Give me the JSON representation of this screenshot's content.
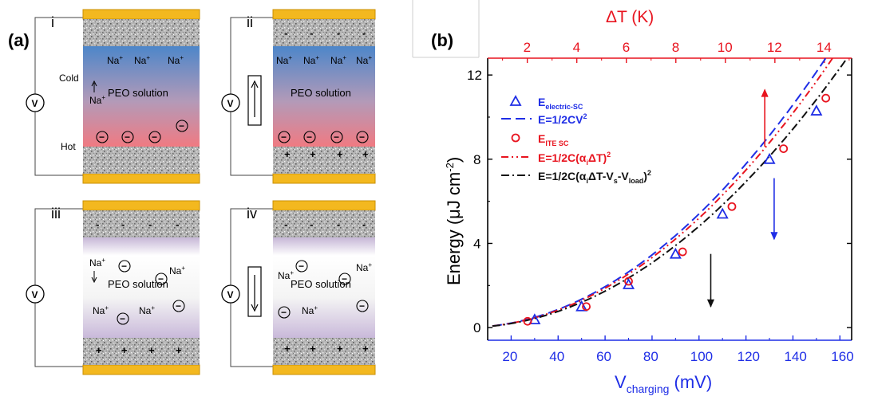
{
  "panel_a": {
    "label": "(a)",
    "subpanels": [
      {
        "id": "i",
        "top_text": "Cold",
        "bottom_text": "Hot",
        "solution": "PEO solution",
        "meter": "V",
        "electrolyte": "hot_cold"
      },
      {
        "id": "ii",
        "solution": "PEO solution",
        "meter": "V",
        "electrolyte": "hot_cold"
      },
      {
        "id": "iii",
        "solution": "PEO solution",
        "meter": "V",
        "electrolyte": "neutral"
      },
      {
        "id": "iv",
        "solution": "PEO solution",
        "meter": "V",
        "electrolyte": "neutral"
      }
    ],
    "ion_na": "Na",
    "ion_plus": "+",
    "anion": "−",
    "plus": "+",
    "minus": "-"
  },
  "panel_b": {
    "label": "(b)"
  },
  "chart_data": {
    "type": "line",
    "x_axis": {
      "label_main": "V",
      "label_sub": "charging",
      "label_unit": " (mV)",
      "range": [
        10,
        165
      ],
      "ticks": [
        "20",
        "40",
        "60",
        "80",
        "100",
        "120",
        "140",
        "160"
      ]
    },
    "y_axis": {
      "label_main": "Energy (μJ cm",
      "label_sup": "-2",
      "label_close": ")",
      "range": [
        -0.6,
        12.8
      ],
      "ticks": [
        "0",
        "4",
        "8",
        "12"
      ]
    },
    "top_axis": {
      "label": "ΔT (K)",
      "range": [
        0.4,
        15.1
      ],
      "ticks": [
        "2",
        "4",
        "6",
        "8",
        "10",
        "12",
        "14"
      ],
      "color": "#e8141f"
    },
    "series": [
      {
        "name": "E=1/2CV²",
        "color": "#1f2ee6",
        "style": "dash",
        "axis": "bottom",
        "fn": "cv2"
      },
      {
        "name": "E=1/2C(αᵢΔT)²",
        "color": "#e8141f",
        "style": "dashdotdot",
        "axis": "bottom",
        "fn": "itesc"
      },
      {
        "name": "E=1/2C(αᵢΔT-Vₛ-V_load)²",
        "color": "#111111",
        "style": "dashdot",
        "axis": "bottom",
        "fn": "load"
      }
    ],
    "scatter": [
      {
        "name": "E_electric-SC",
        "marker": "triangle",
        "color": "#1f2ee6",
        "x": [
          30,
          50,
          70,
          90,
          110,
          130,
          150
        ],
        "y": [
          0.38,
          1.0,
          2.05,
          3.5,
          5.4,
          8.0,
          10.3
        ]
      },
      {
        "name": "E_ITE SC",
        "marker": "circle",
        "color": "#e8141f",
        "x": [
          27,
          52,
          70,
          93,
          114,
          136,
          154
        ],
        "y": [
          0.3,
          1.0,
          2.2,
          3.6,
          5.75,
          8.5,
          10.9
        ]
      }
    ],
    "legend": [
      {
        "marker": "triangle",
        "color": "#1f2ee6",
        "main": "E",
        "sub": "electric-SC",
        "tail": ""
      },
      {
        "marker": "dash",
        "color": "#1f2ee6",
        "main": "E=1/2CV",
        "sup": "2",
        "tail": ""
      },
      {
        "marker": "circle",
        "color": "#e8141f",
        "main": "E",
        "sub": "ITE SC",
        "tail": ""
      },
      {
        "marker": "dashdotdot",
        "color": "#e8141f",
        "main": "E=1/2C(α",
        "sub": "i",
        "main2": "ΔT)",
        "sup": "2"
      },
      {
        "marker": "dashdot",
        "color": "#111111",
        "main": "E=1/2C(α",
        "sub": "i",
        "main2": "ΔT-V",
        "sub2": "s",
        "main3": "-V",
        "sub3": "load",
        "main4": ")",
        "sup": "2"
      }
    ],
    "arrows": [
      {
        "color": "#e8141f",
        "x": 128,
        "y_from": 8.6,
        "y_to": 11.3
      },
      {
        "color": "#1f2ee6",
        "x": 132,
        "y_from": 7.1,
        "y_to": 4.2
      },
      {
        "color": "#111111",
        "x": 105,
        "y_from": 3.5,
        "y_to": 1.0
      }
    ],
    "legend_position": "top-left",
    "grid": false
  }
}
